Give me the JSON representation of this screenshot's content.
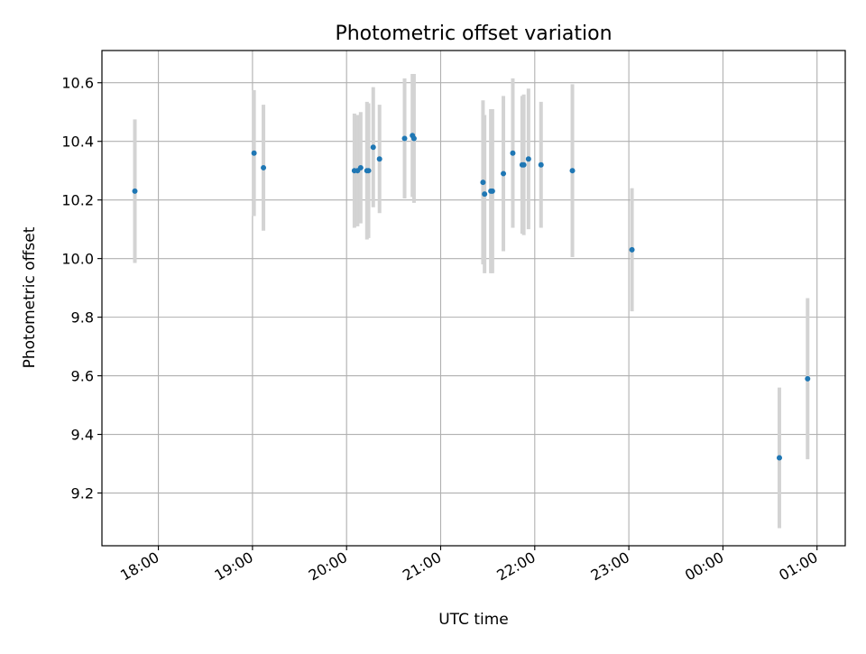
{
  "chart_data": {
    "type": "scatter",
    "title": "Photometric offset variation",
    "xlabel": "UTC time",
    "ylabel": "Photometric offset",
    "xlim": [
      "17:24",
      "01:18"
    ],
    "ylim": [
      9.02,
      10.71
    ],
    "x_ticks": [
      "18:00",
      "19:00",
      "20:00",
      "21:00",
      "22:00",
      "23:00",
      "00:00",
      "01:00"
    ],
    "y_ticks": [
      9.2,
      9.4,
      9.6,
      9.8,
      10.0,
      10.2,
      10.4,
      10.6
    ],
    "grid": true,
    "marker_color": "#1f77b4",
    "errorbar_color": "#d3d3d3",
    "points": [
      {
        "time": "17:45",
        "y": 10.23,
        "err": 0.245
      },
      {
        "time": "19:01",
        "y": 10.36,
        "err": 0.215
      },
      {
        "time": "19:07",
        "y": 10.31,
        "err": 0.215
      },
      {
        "time": "20:05",
        "y": 10.3,
        "err": 0.195
      },
      {
        "time": "20:07",
        "y": 10.3,
        "err": 0.19
      },
      {
        "time": "20:09",
        "y": 10.31,
        "err": 0.19
      },
      {
        "time": "20:13",
        "y": 10.3,
        "err": 0.235
      },
      {
        "time": "20:14",
        "y": 10.3,
        "err": 0.23
      },
      {
        "time": "20:17",
        "y": 10.38,
        "err": 0.205
      },
      {
        "time": "20:21",
        "y": 10.34,
        "err": 0.185
      },
      {
        "time": "20:37",
        "y": 10.41,
        "err": 0.205
      },
      {
        "time": "20:42",
        "y": 10.42,
        "err": 0.21
      },
      {
        "time": "20:43",
        "y": 10.41,
        "err": 0.22
      },
      {
        "time": "21:27",
        "y": 10.26,
        "err": 0.28
      },
      {
        "time": "21:28",
        "y": 10.22,
        "err": 0.27
      },
      {
        "time": "21:32",
        "y": 10.23,
        "err": 0.28
      },
      {
        "time": "21:33",
        "y": 10.23,
        "err": 0.28
      },
      {
        "time": "21:40",
        "y": 10.29,
        "err": 0.265
      },
      {
        "time": "21:46",
        "y": 10.36,
        "err": 0.255
      },
      {
        "time": "21:52",
        "y": 10.32,
        "err": 0.235
      },
      {
        "time": "21:53",
        "y": 10.32,
        "err": 0.24
      },
      {
        "time": "21:56",
        "y": 10.34,
        "err": 0.24
      },
      {
        "time": "22:04",
        "y": 10.32,
        "err": 0.215
      },
      {
        "time": "22:24",
        "y": 10.3,
        "err": 0.295
      },
      {
        "time": "23:02",
        "y": 10.03,
        "err": 0.21
      },
      {
        "time": "00:36",
        "y": 9.32,
        "err": 0.24
      },
      {
        "time": "00:54",
        "y": 9.59,
        "err": 0.275
      }
    ]
  }
}
